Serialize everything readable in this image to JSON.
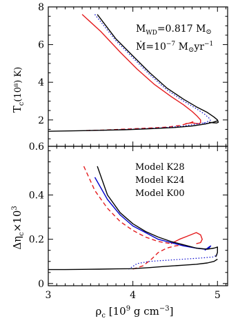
{
  "chart_data": [
    {
      "type": "line",
      "panel": "top",
      "ylabel_main": "T",
      "ylabel_sub": "c",
      "ylabel_unit": "(10⁸) K)",
      "xlim": [
        3.0,
        5.12
      ],
      "ylim": [
        0.6,
        8.0
      ],
      "yticks": [
        {
          "v": 0.6,
          "label": "0.6"
        },
        {
          "v": 2,
          "label": "2"
        },
        {
          "v": 4,
          "label": "4"
        },
        {
          "v": 6,
          "label": "6"
        },
        {
          "v": 8,
          "label": "8"
        }
      ],
      "annotations": {
        "mwd_lhs": "M",
        "mwd_sub": "WD",
        "mwd_rhs": "=0.817 M",
        "mwd_sun": "⊙",
        "mdot_lhs": "Ṁ=10",
        "mdot_exp": "−7",
        "mdot_rhs": " M",
        "mdot_sun": "⊙",
        "mdot_unit": "yr",
        "mdot_unit_exp": "−1"
      },
      "series": [
        {
          "color": "#e41a1c",
          "style": "solid",
          "x": [
            3.4,
            3.62,
            3.85,
            4.05,
            4.25,
            4.45,
            4.6,
            4.7,
            4.76,
            4.8,
            4.8,
            4.78,
            4.74,
            4.7,
            4.62
          ],
          "y": [
            7.6,
            6.7,
            5.6,
            4.7,
            3.9,
            3.25,
            2.8,
            2.45,
            2.2,
            2.0,
            1.85,
            1.8,
            1.82,
            1.85,
            1.8
          ]
        },
        {
          "color": "#e41a1c",
          "style": "dash",
          "x": [
            3.45,
            3.65,
            3.85,
            4.05,
            4.25,
            4.4,
            4.55,
            4.68,
            4.74
          ],
          "y": [
            1.44,
            1.46,
            1.5,
            1.54,
            1.58,
            1.62,
            1.7,
            1.85,
            1.95
          ]
        },
        {
          "color": "#0000cc",
          "style": "dot",
          "x": [
            3.55,
            3.8,
            4.0,
            4.2,
            4.4,
            4.6,
            4.75,
            4.85,
            4.9,
            4.92,
            4.9,
            4.86,
            4.82
          ],
          "y": [
            7.6,
            6.2,
            5.3,
            4.4,
            3.6,
            3.0,
            2.6,
            2.3,
            2.1,
            1.95,
            1.85,
            1.82,
            1.85
          ]
        },
        {
          "color": "#0000cc",
          "style": "dot",
          "x": [
            3.45,
            3.7,
            3.95,
            4.2,
            4.4,
            4.6,
            4.75,
            4.85,
            4.9
          ],
          "y": [
            1.44,
            1.46,
            1.5,
            1.55,
            1.6,
            1.68,
            1.78,
            1.85,
            1.95
          ]
        },
        {
          "color": "#000000",
          "style": "solid",
          "x": [
            3.58,
            3.8,
            4.0,
            4.2,
            4.4,
            4.6,
            4.75,
            4.88,
            4.96,
            5.0,
            5.01,
            4.99,
            4.95,
            4.9
          ],
          "y": [
            7.6,
            6.3,
            5.4,
            4.5,
            3.7,
            3.1,
            2.7,
            2.4,
            2.15,
            2.0,
            1.88,
            1.84,
            1.85,
            1.88
          ]
        },
        {
          "color": "#000000",
          "style": "solid",
          "x": [
            3.0,
            3.3,
            3.6,
            3.9,
            4.2,
            4.5,
            4.7,
            4.85,
            4.95,
            5.0
          ],
          "y": [
            1.4,
            1.42,
            1.45,
            1.48,
            1.53,
            1.6,
            1.68,
            1.78,
            1.88,
            1.95
          ]
        }
      ]
    },
    {
      "type": "line",
      "panel": "bottom",
      "ylabel_main": "Δη",
      "ylabel_sub": "c",
      "ylabel_rhs": "×10",
      "ylabel_exp": "3",
      "xlabel_main": "ρ",
      "xlabel_sub": "c",
      "xlabel_unit": " [10",
      "xlabel_unit_exp": "9",
      "xlabel_unit_rest": " g cm",
      "xlabel_unit_exp2": "−3",
      "xlabel_close": "]",
      "xlim": [
        3.0,
        5.12
      ],
      "ylim": [
        -0.01,
        0.62
      ],
      "xticks": [
        {
          "v": 3,
          "label": "3"
        },
        {
          "v": 4,
          "label": "4"
        },
        {
          "v": 5,
          "label": "5"
        }
      ],
      "yticks": [
        {
          "v": 0,
          "label": "0"
        },
        {
          "v": 0.2,
          "label": "0.2"
        },
        {
          "v": 0.4,
          "label": "0.4"
        }
      ],
      "legend": [
        {
          "label": "Model K28",
          "color": "#e41a1c"
        },
        {
          "label": "Model K24",
          "color": "#0000cc"
        },
        {
          "label": "Model K00",
          "color": "#000000"
        }
      ],
      "series": [
        {
          "color": "#e41a1c",
          "style": "dash",
          "x": [
            3.42,
            3.55,
            3.7,
            3.85,
            4.0,
            4.15,
            4.3,
            4.45
          ],
          "y": [
            0.53,
            0.42,
            0.34,
            0.28,
            0.24,
            0.21,
            0.19,
            0.18
          ]
        },
        {
          "color": "#e41a1c",
          "style": "solid",
          "x": [
            4.45,
            4.55,
            4.65,
            4.75,
            4.8,
            4.82,
            4.8,
            4.75
          ],
          "y": [
            0.18,
            0.2,
            0.215,
            0.23,
            0.22,
            0.2,
            0.185,
            0.18
          ]
        },
        {
          "color": "#e41a1c",
          "style": "dash",
          "x": [
            4.0,
            4.12,
            4.22,
            4.3,
            4.4,
            4.5,
            4.6
          ],
          "y": [
            0.065,
            0.08,
            0.11,
            0.14,
            0.16,
            0.17,
            0.175
          ]
        },
        {
          "color": "#0000cc",
          "style": "solid",
          "x": [
            3.55,
            3.7,
            3.85,
            4.0,
            4.15,
            4.3,
            4.45,
            4.6,
            4.75,
            4.85,
            4.9,
            4.92,
            4.9,
            4.85
          ],
          "y": [
            0.48,
            0.38,
            0.31,
            0.26,
            0.23,
            0.2,
            0.185,
            0.17,
            0.16,
            0.155,
            0.16,
            0.17,
            0.165,
            0.15
          ]
        },
        {
          "color": "#0000cc",
          "style": "dot",
          "x": [
            3.95,
            4.05,
            4.2,
            4.4,
            4.6,
            4.8,
            4.95,
            5.0
          ],
          "y": [
            0.065,
            0.09,
            0.1,
            0.105,
            0.11,
            0.115,
            0.12,
            0.13
          ]
        },
        {
          "color": "#000000",
          "style": "solid",
          "x": [
            3.58,
            3.7,
            3.85,
            4.0,
            4.15,
            4.3,
            4.45,
            4.6,
            4.75,
            4.88,
            4.96,
            5.0,
            5.0,
            4.98
          ],
          "y": [
            0.53,
            0.4,
            0.32,
            0.27,
            0.235,
            0.21,
            0.19,
            0.175,
            0.16,
            0.155,
            0.16,
            0.165,
            0.14,
            0.12
          ]
        },
        {
          "color": "#000000",
          "style": "solid",
          "x": [
            3.0,
            3.2,
            3.4,
            3.6,
            3.8,
            4.0,
            4.2,
            4.4,
            4.6,
            4.75,
            4.88,
            4.96,
            5.0
          ],
          "y": [
            0.063,
            0.063,
            0.064,
            0.065,
            0.066,
            0.067,
            0.072,
            0.078,
            0.083,
            0.087,
            0.093,
            0.1,
            0.11
          ]
        }
      ]
    }
  ]
}
